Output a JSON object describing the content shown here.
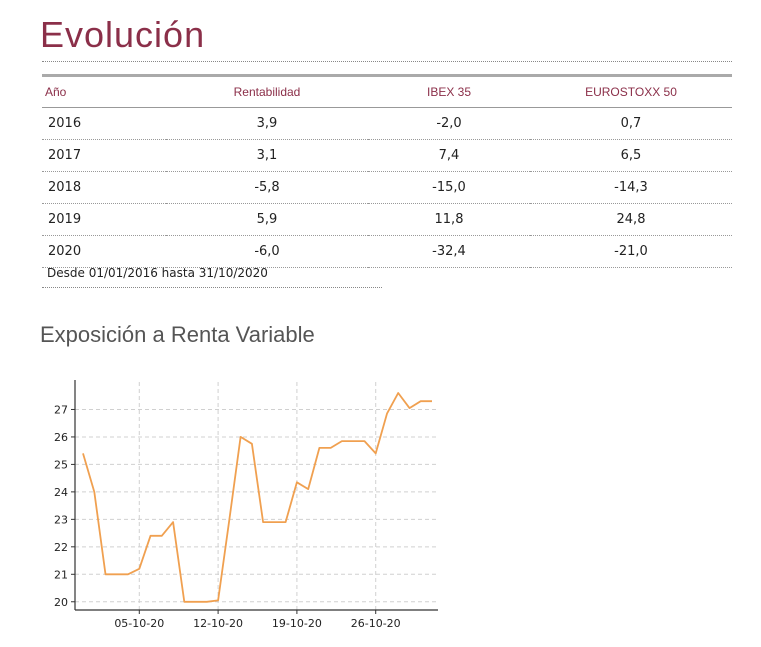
{
  "title": "Evolución",
  "table": {
    "headers": [
      "Año",
      "Rentabilidad",
      "IBEX 35",
      "EUROSTOXX 50"
    ],
    "rows": [
      [
        "2016",
        "3,9",
        "-2,0",
        "0,7"
      ],
      [
        "2017",
        "3,1",
        "7,4",
        "6,5"
      ],
      [
        "2018",
        "-5,8",
        "-15,0",
        "-14,3"
      ],
      [
        "2019",
        "5,9",
        "11,8",
        "24,8"
      ],
      [
        "2020",
        "-6,0",
        "-32,4",
        "-21,0"
      ]
    ],
    "note": "Desde 01/01/2016 hasta 31/10/2020"
  },
  "subtitle": "Exposición a Renta Variable",
  "chart_data": {
    "type": "line",
    "color": "#f0a050",
    "grid": true,
    "ylim": [
      19.7,
      28
    ],
    "yticks": [
      20,
      21,
      22,
      23,
      24,
      25,
      26,
      27
    ],
    "xticks": [
      "05-10-20",
      "12-10-20",
      "19-10-20",
      "26-10-20"
    ],
    "x": [
      "2020-09-30",
      "2020-10-01",
      "2020-10-02",
      "2020-10-03",
      "2020-10-04",
      "2020-10-05",
      "2020-10-06",
      "2020-10-07",
      "2020-10-08",
      "2020-10-09",
      "2020-10-10",
      "2020-10-11",
      "2020-10-12",
      "2020-10-13",
      "2020-10-14",
      "2020-10-15",
      "2020-10-16",
      "2020-10-17",
      "2020-10-18",
      "2020-10-19",
      "2020-10-20",
      "2020-10-21",
      "2020-10-22",
      "2020-10-23",
      "2020-10-24",
      "2020-10-25",
      "2020-10-26",
      "2020-10-27",
      "2020-10-28",
      "2020-10-29",
      "2020-10-30",
      "2020-10-31"
    ],
    "y": [
      25.4,
      24.0,
      21.0,
      21.0,
      21.0,
      21.2,
      22.4,
      22.4,
      22.9,
      20.0,
      20.0,
      20.0,
      20.05,
      23.0,
      26.0,
      25.75,
      22.9,
      22.9,
      22.9,
      24.35,
      24.1,
      25.6,
      25.6,
      25.85,
      25.85,
      25.85,
      25.4,
      26.85,
      27.6,
      27.05,
      27.3,
      27.3
    ]
  }
}
